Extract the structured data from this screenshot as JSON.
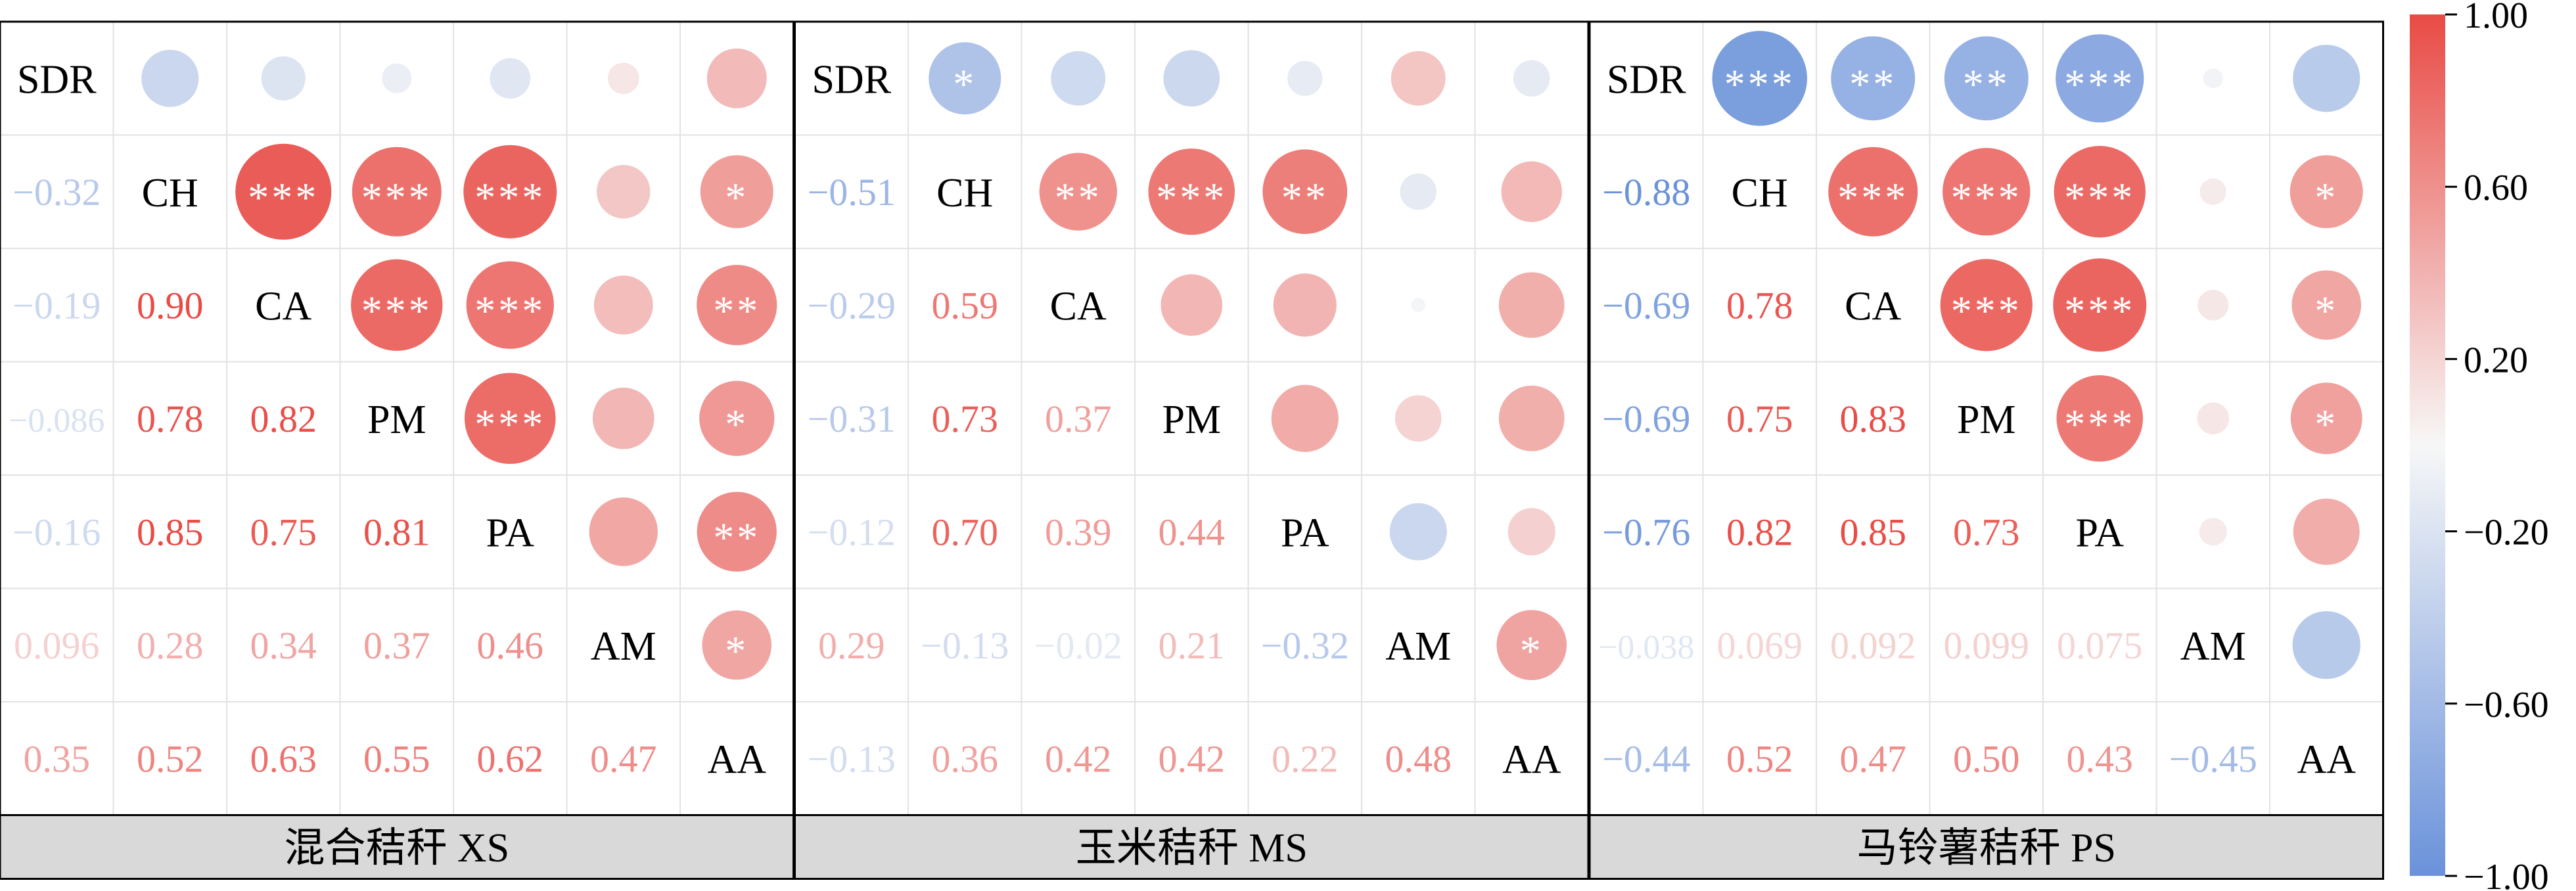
{
  "chart_data": {
    "type": "heatmap",
    "title": "",
    "variables": [
      "SDR",
      "CH",
      "CA",
      "PM",
      "PA",
      "AM",
      "AA"
    ],
    "color_scale": {
      "min": -1.0,
      "max": 1.0,
      "ticks": [
        "1.00",
        "0.60",
        "0.20",
        "−0.20",
        "−0.60",
        "−1.00"
      ],
      "negative_color": "#6a92da",
      "zero_color": "#f7f7f7",
      "positive_color": "#e94b45"
    },
    "panels": [
      {
        "label": "混合秸秆 XS",
        "matrix": [
          [
            1,
            -0.32,
            -0.19,
            -0.086,
            -0.16,
            0.096,
            0.35
          ],
          [
            -0.32,
            1,
            0.9,
            0.78,
            0.85,
            0.28,
            0.52
          ],
          [
            -0.19,
            0.9,
            1,
            0.82,
            0.75,
            0.34,
            0.63
          ],
          [
            -0.086,
            0.78,
            0.82,
            1,
            0.81,
            0.37,
            0.55
          ],
          [
            -0.16,
            0.85,
            0.75,
            0.81,
            1,
            0.46,
            0.62
          ],
          [
            0.096,
            0.28,
            0.34,
            0.37,
            0.46,
            1,
            0.47
          ],
          [
            0.35,
            0.52,
            0.63,
            0.55,
            0.62,
            0.47,
            1
          ]
        ],
        "labels": [
          [
            "",
            "",
            "",
            "",
            "",
            "",
            ""
          ],
          [
            "−0.32",
            "",
            "",
            "",
            "",
            "",
            ""
          ],
          [
            "−0.19",
            "0.90",
            "",
            "",
            "",
            "",
            ""
          ],
          [
            "−0.086",
            "0.78",
            "0.82",
            "",
            "",
            "",
            ""
          ],
          [
            "−0.16",
            "0.85",
            "0.75",
            "0.81",
            "",
            "",
            ""
          ],
          [
            "0.096",
            "0.28",
            "0.34",
            "0.37",
            "0.46",
            "",
            ""
          ],
          [
            "0.35",
            "0.52",
            "0.63",
            "0.55",
            "0.62",
            "0.47",
            ""
          ]
        ],
        "sig": [
          [
            "",
            "",
            "",
            "",
            "",
            "",
            ""
          ],
          [
            "",
            "",
            "***",
            "***",
            "***",
            "",
            "*"
          ],
          [
            "",
            "",
            "",
            "***",
            "***",
            "",
            "**"
          ],
          [
            "",
            "",
            "",
            "",
            "***",
            "",
            "*"
          ],
          [
            "",
            "",
            "",
            "",
            "",
            "",
            "**"
          ],
          [
            "",
            "",
            "",
            "",
            "",
            "",
            "*"
          ],
          [
            "",
            "",
            "",
            "",
            "",
            "",
            ""
          ]
        ]
      },
      {
        "label": "玉米秸秆 MS",
        "matrix": [
          [
            1,
            -0.51,
            -0.29,
            -0.31,
            -0.12,
            0.29,
            -0.13
          ],
          [
            -0.51,
            1,
            0.59,
            0.73,
            0.7,
            -0.13,
            0.36
          ],
          [
            -0.29,
            0.59,
            1,
            0.37,
            0.39,
            -0.02,
            0.42
          ],
          [
            -0.31,
            0.73,
            0.37,
            1,
            0.44,
            0.21,
            0.42
          ],
          [
            -0.12,
            0.7,
            0.39,
            0.44,
            1,
            -0.32,
            0.22
          ],
          [
            0.29,
            -0.13,
            -0.02,
            0.21,
            -0.32,
            1,
            0.48
          ],
          [
            -0.13,
            0.36,
            0.42,
            0.42,
            0.22,
            0.48,
            1
          ]
        ],
        "labels": [
          [
            "",
            "",
            "",
            "",
            "",
            "",
            ""
          ],
          [
            "−0.51",
            "",
            "",
            "",
            "",
            "",
            ""
          ],
          [
            "−0.29",
            "0.59",
            "",
            "",
            "",
            "",
            ""
          ],
          [
            "−0.31",
            "0.73",
            "0.37",
            "",
            "",
            "",
            ""
          ],
          [
            "−0.12",
            "0.70",
            "0.39",
            "0.44",
            "",
            "",
            ""
          ],
          [
            "0.29",
            "−0.13",
            "−0.02",
            "0.21",
            "−0.32",
            "",
            ""
          ],
          [
            "−0.13",
            "0.36",
            "0.42",
            "0.42",
            "0.22",
            "0.48",
            ""
          ]
        ],
        "sig": [
          [
            "",
            "*",
            "",
            "",
            "",
            "",
            ""
          ],
          [
            "",
            "",
            "**",
            "***",
            "**",
            "",
            ""
          ],
          [
            "",
            "",
            "",
            "",
            "",
            "",
            ""
          ],
          [
            "",
            "",
            "",
            "",
            "",
            "",
            ""
          ],
          [
            "",
            "",
            "",
            "",
            "",
            "",
            ""
          ],
          [
            "",
            "",
            "",
            "",
            "",
            "",
            "*"
          ],
          [
            "",
            "",
            "",
            "",
            "",
            "",
            ""
          ]
        ]
      },
      {
        "label": "马铃薯秸秆 PS",
        "matrix": [
          [
            1,
            -0.88,
            -0.69,
            -0.69,
            -0.76,
            -0.038,
            -0.44
          ],
          [
            -0.88,
            1,
            0.78,
            0.75,
            0.82,
            0.069,
            0.52
          ],
          [
            -0.69,
            0.78,
            1,
            0.83,
            0.85,
            0.092,
            0.47
          ],
          [
            -0.69,
            0.75,
            0.83,
            1,
            0.73,
            0.099,
            0.5
          ],
          [
            -0.76,
            0.82,
            0.85,
            0.73,
            1,
            0.075,
            0.43
          ],
          [
            -0.038,
            0.069,
            0.092,
            0.099,
            0.075,
            1,
            -0.45
          ],
          [
            -0.44,
            0.52,
            0.47,
            0.5,
            0.43,
            -0.45,
            1
          ]
        ],
        "labels": [
          [
            "",
            "",
            "",
            "",
            "",
            "",
            ""
          ],
          [
            "−0.88",
            "",
            "",
            "",
            "",
            "",
            ""
          ],
          [
            "−0.69",
            "0.78",
            "",
            "",
            "",
            "",
            ""
          ],
          [
            "−0.69",
            "0.75",
            "0.83",
            "",
            "",
            "",
            ""
          ],
          [
            "−0.76",
            "0.82",
            "0.85",
            "0.73",
            "",
            "",
            ""
          ],
          [
            "−0.038",
            "0.069",
            "0.092",
            "0.099",
            "0.075",
            "",
            ""
          ],
          [
            "−0.44",
            "0.52",
            "0.47",
            "0.50",
            "0.43",
            "−0.45",
            ""
          ]
        ],
        "sig": [
          [
            "",
            "***",
            "**",
            "**",
            "***",
            "",
            ""
          ],
          [
            "",
            "",
            "***",
            "***",
            "***",
            "",
            "*"
          ],
          [
            "",
            "",
            "",
            "***",
            "***",
            "",
            "*"
          ],
          [
            "",
            "",
            "",
            "",
            "***",
            "",
            "*"
          ],
          [
            "",
            "",
            "",
            "",
            "",
            "",
            ""
          ],
          [
            "",
            "",
            "",
            "",
            "",
            "",
            ""
          ],
          [
            "",
            "",
            "",
            "",
            "",
            "",
            ""
          ]
        ]
      }
    ]
  }
}
